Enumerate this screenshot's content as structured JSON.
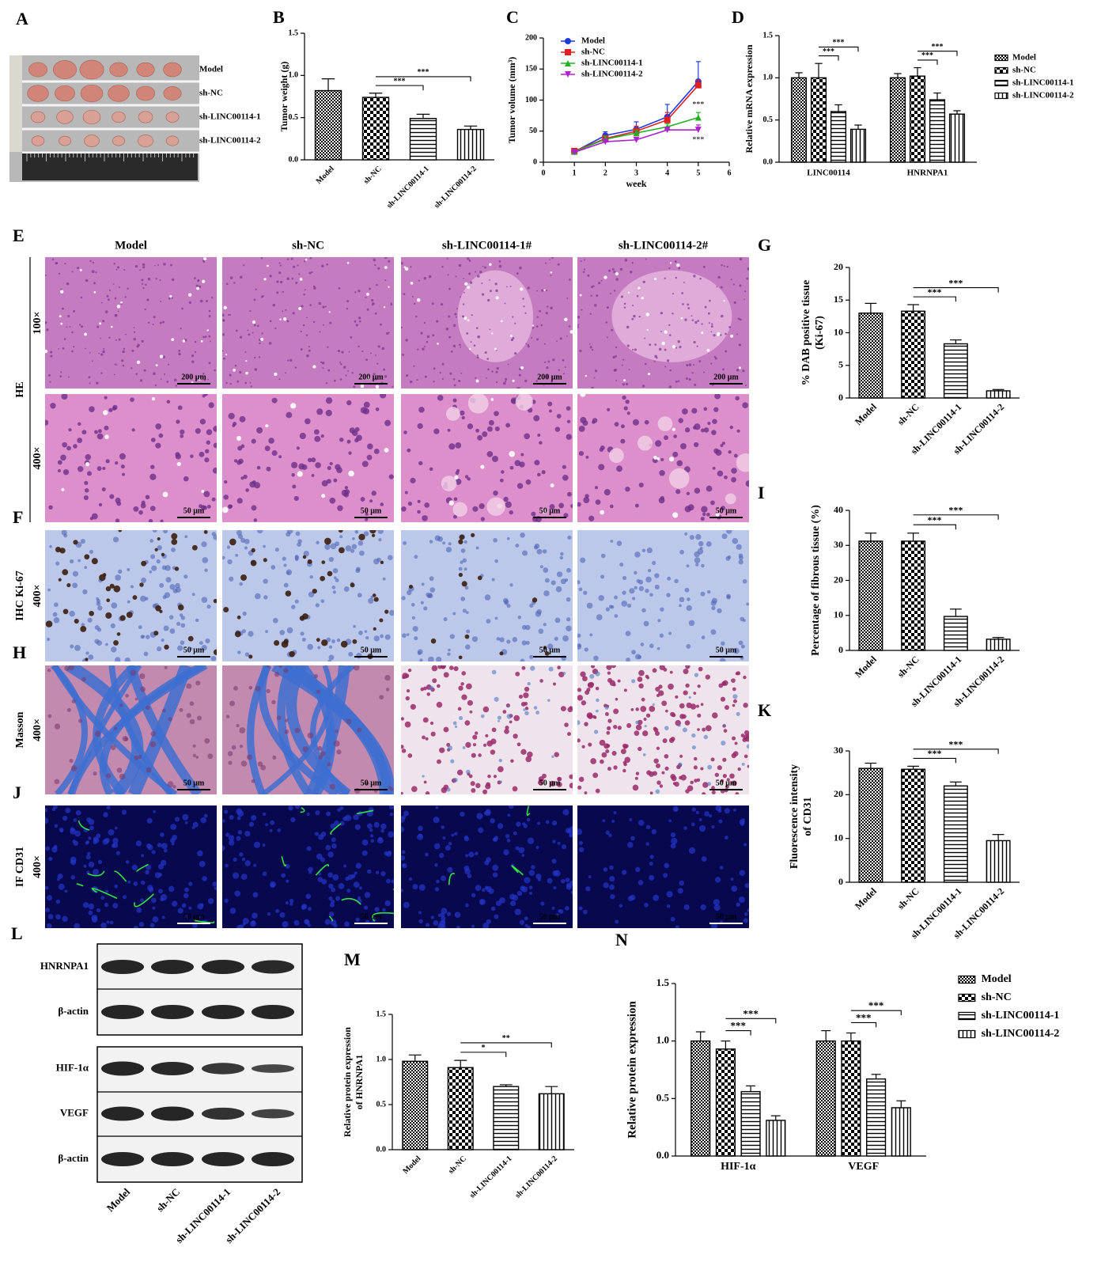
{
  "photo": {
    "panel": "A",
    "labels": [
      "Model",
      "sh-NC",
      "sh-LINC00114-1",
      "sh-LINC00114-2"
    ]
  },
  "histology": {
    "columns": [
      "Model",
      "sh-NC",
      "sh-LINC00114-1#",
      "sh-LINC00114-2#"
    ],
    "groups": [
      {
        "panel": "E",
        "label": "HE",
        "rows": [
          {
            "magnification": "100×",
            "scale_bar": "200 μm"
          },
          {
            "magnification": "400×",
            "scale_bar": "50 μm"
          }
        ]
      },
      {
        "panel": "F",
        "label": "IHC Ki-67",
        "rows": [
          {
            "magnification": "400×",
            "scale_bar": "50 μm"
          }
        ]
      },
      {
        "panel": "H",
        "label": "Masson",
        "rows": [
          {
            "magnification": "400×",
            "scale_bar": "50 μm"
          }
        ]
      },
      {
        "panel": "J",
        "label": "IF CD31",
        "rows": [
          {
            "magnification": "400×",
            "scale_bar": "50 μm"
          }
        ]
      }
    ]
  },
  "western": {
    "panel": "L",
    "bands": [
      "HNRNPA1",
      "β-actin",
      "HIF-1α",
      "VEGF",
      "β-actin"
    ],
    "lanes": [
      "Model",
      "sh-NC",
      "sh-LINC00114-1",
      "sh-LINC00114-2"
    ]
  },
  "chart_data": [
    {
      "type": "bar",
      "panel": "B",
      "ylabel": "Tumor weight (g)",
      "categories": [
        "Model",
        "sh-NC",
        "sh-LINC00114-1",
        "sh-LINC00114-2"
      ],
      "values": [
        0.82,
        0.74,
        0.49,
        0.36
      ],
      "errors": [
        0.14,
        0.05,
        0.05,
        0.04
      ],
      "color": "#000000",
      "ylim": [
        0,
        1.5
      ],
      "yticks": [
        {
          "value": 0,
          "label": "0.0"
        },
        0.5,
        {
          "value": 1,
          "label": "1.0"
        },
        1.5
      ],
      "annotations": [
        "***",
        "***"
      ]
    },
    {
      "type": "line",
      "panel": "C",
      "ylabel": "Tumor volume (mm³)",
      "xlabel": "week",
      "x": [
        1,
        2,
        3,
        4,
        5
      ],
      "xlim": [
        0,
        6
      ],
      "xticks": [
        0,
        1,
        2,
        3,
        4,
        5,
        6
      ],
      "ylim": [
        0,
        200
      ],
      "yticks": [
        0,
        50,
        100,
        150,
        200
      ],
      "legend": "upper left",
      "series": [
        {
          "name": "Model",
          "color": "#1f3ae0",
          "marker": "circle",
          "values": [
            17,
            43,
            53,
            73,
            130
          ],
          "errors": [
            3,
            6,
            12,
            20,
            32
          ]
        },
        {
          "name": "sh-NC",
          "color": "#e02020",
          "marker": "square",
          "values": [
            18,
            38,
            50,
            68,
            124
          ],
          "errors": [
            3,
            5,
            8,
            12,
            8
          ]
        },
        {
          "name": "sh-LINC00114-1",
          "color": "#22b022",
          "marker": "triangle",
          "values": [
            17,
            37,
            47,
            57,
            72
          ],
          "errors": [
            3,
            5,
            5,
            5,
            8
          ]
        },
        {
          "name": "sh-LINC00114-2",
          "color": "#b020d0",
          "marker": "triangle-down",
          "values": [
            16,
            33,
            36,
            52,
            52
          ],
          "errors": [
            2,
            3,
            3,
            4,
            8
          ]
        }
      ],
      "annotations": [
        "***",
        "***"
      ]
    },
    {
      "type": "bar",
      "panel": "D",
      "ylabel": "Relative mRNA expression",
      "categories": [
        "LINC00114",
        "HNRNPA1"
      ],
      "color": "#000000",
      "legend": "right",
      "series": [
        {
          "name": "Model",
          "values": [
            1.0,
            1.0
          ],
          "errors": [
            0.06,
            0.05
          ]
        },
        {
          "name": "sh-NC",
          "values": [
            1.0,
            1.02
          ],
          "errors": [
            0.17,
            0.1
          ]
        },
        {
          "name": "sh-LINC00114-1",
          "values": [
            0.6,
            0.74
          ],
          "errors": [
            0.08,
            0.08
          ]
        },
        {
          "name": "sh-LINC00114-2",
          "values": [
            0.39,
            0.57
          ],
          "errors": [
            0.05,
            0.04
          ]
        }
      ],
      "ylim": [
        0,
        1.5
      ],
      "yticks": [
        {
          "value": 0,
          "label": "0.0"
        },
        0.5,
        {
          "value": 1,
          "label": "1.0"
        },
        1.5
      ],
      "annotations": [
        "***",
        "***",
        "***",
        "***"
      ]
    },
    {
      "type": "bar",
      "panel": "G",
      "ylabel": [
        "% DAB positive tissue",
        "(Ki-67)"
      ],
      "categories": [
        "Model",
        "sh-NC",
        "sh-LINC00114-1",
        "sh-LINC00114-2"
      ],
      "values": [
        13,
        13.3,
        8.3,
        1.1
      ],
      "errors": [
        1.5,
        1.0,
        0.6,
        0.2
      ],
      "color": "#000000",
      "ylim": [
        0,
        20
      ],
      "yticks": [
        0,
        5,
        10,
        15,
        20
      ],
      "annotations": [
        "***",
        "***"
      ]
    },
    {
      "type": "bar",
      "panel": "I",
      "ylabel": "Percentage of fibrous tissue (%)",
      "categories": [
        "Model",
        "sh-NC",
        "sh-LINC00114-1",
        "sh-LINC00114-2"
      ],
      "values": [
        31.2,
        31.2,
        9.7,
        3.2
      ],
      "errors": [
        2.3,
        2.3,
        2.1,
        0.5
      ],
      "color": "#000000",
      "ylim": [
        0,
        40
      ],
      "yticks": [
        0,
        10,
        20,
        30,
        40
      ],
      "annotations": [
        "***",
        "***"
      ]
    },
    {
      "type": "bar",
      "panel": "K",
      "ylabel": [
        "Fluorescence intensity",
        "of CD31"
      ],
      "categories": [
        "Model",
        "sh-NC",
        "sh-LINC00114-1",
        "sh-LINC00114-2"
      ],
      "values": [
        26,
        25.8,
        22,
        9.5
      ],
      "errors": [
        1.2,
        0.7,
        0.9,
        1.4
      ],
      "color": "#000000",
      "ylim": [
        0,
        30
      ],
      "yticks": [
        0,
        10,
        20,
        30
      ],
      "annotations": [
        "***",
        "***"
      ]
    },
    {
      "type": "bar",
      "panel": "M",
      "ylabel": [
        "Relative protein expression",
        "of HNRNPA1"
      ],
      "categories": [
        "Model",
        "sh-NC",
        "sh-LINC00114-1",
        "sh-LINC00114-2"
      ],
      "values": [
        0.98,
        0.91,
        0.7,
        0.62
      ],
      "errors": [
        0.07,
        0.08,
        0.02,
        0.08
      ],
      "color": "#000000",
      "ylim": [
        0,
        1.5
      ],
      "yticks": [
        {
          "value": 0,
          "label": "0.0"
        },
        0.5,
        {
          "value": 1,
          "label": "1.0"
        },
        1.5
      ],
      "annotations": [
        "*",
        "**"
      ]
    },
    {
      "type": "bar",
      "panel": "N",
      "ylabel": "Relative protein expression",
      "categories": [
        "HIF-1α",
        "VEGF"
      ],
      "color": "#000000",
      "legend": "right",
      "series": [
        {
          "name": "Model",
          "values": [
            1.0,
            1.0
          ],
          "errors": [
            0.08,
            0.09
          ]
        },
        {
          "name": "sh-NC",
          "values": [
            0.93,
            1.0
          ],
          "errors": [
            0.07,
            0.07
          ]
        },
        {
          "name": "sh-LINC00114-1",
          "values": [
            0.56,
            0.67
          ],
          "errors": [
            0.05,
            0.04
          ]
        },
        {
          "name": "sh-LINC00114-2",
          "values": [
            0.31,
            0.42
          ],
          "errors": [
            0.04,
            0.06
          ]
        }
      ],
      "ylim": [
        0,
        1.5
      ],
      "yticks": [
        {
          "value": 0,
          "label": "0.0"
        },
        0.5,
        {
          "value": 1,
          "label": "1.0"
        },
        1.5
      ],
      "annotations": [
        "***",
        "***",
        "***",
        "***"
      ]
    }
  ]
}
